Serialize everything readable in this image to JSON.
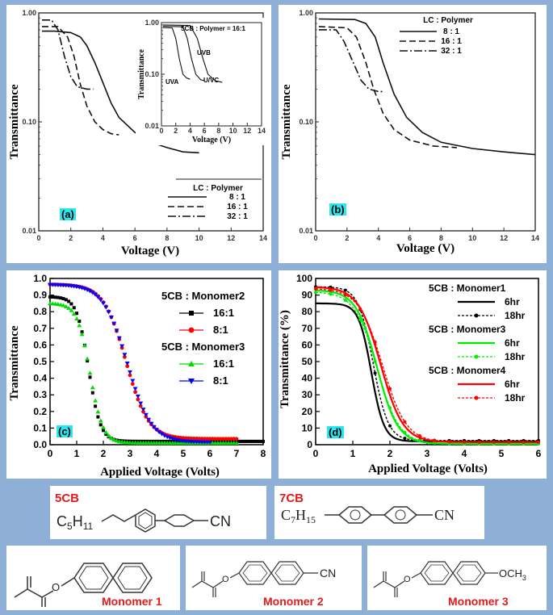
{
  "chart_data": [
    {
      "id": "a",
      "type": "line",
      "panel_label": "(a)",
      "xlabel": "Voltage (V)",
      "ylabel": "Transmittance",
      "xlim": [
        0,
        14
      ],
      "ylim": [
        0.01,
        1.0
      ],
      "yscale": "log",
      "x_ticks": [
        "0",
        "2",
        "4",
        "6",
        "8",
        "10",
        "12",
        "14"
      ],
      "y_ticks": [
        "0.01",
        "0.10",
        "1.00"
      ],
      "legend_title": "LC : Polymer",
      "series": [
        {
          "name": "8 : 1",
          "style": "solid",
          "points": [
            [
              0.2,
              0.68
            ],
            [
              1.0,
              0.68
            ],
            [
              2.0,
              0.66
            ],
            [
              2.6,
              0.6
            ],
            [
              3.0,
              0.5
            ],
            [
              3.5,
              0.35
            ],
            [
              4.0,
              0.23
            ],
            [
              4.5,
              0.15
            ],
            [
              5.0,
              0.11
            ],
            [
              6.0,
              0.08
            ],
            [
              7.0,
              0.065
            ],
            [
              8.0,
              0.058
            ],
            [
              9.0,
              0.053
            ],
            [
              10.0,
              0.052
            ]
          ]
        },
        {
          "name": "16 : 1",
          "style": "dashed",
          "points": [
            [
              0.2,
              0.75
            ],
            [
              1.2,
              0.75
            ],
            [
              1.8,
              0.6
            ],
            [
              2.2,
              0.4
            ],
            [
              2.6,
              0.22
            ],
            [
              3.0,
              0.14
            ],
            [
              3.5,
              0.1
            ],
            [
              4.0,
              0.085
            ],
            [
              4.5,
              0.078
            ],
            [
              5.0,
              0.076
            ]
          ]
        },
        {
          "name": "32 : 1",
          "style": "dashdot",
          "points": [
            [
              0.2,
              0.86
            ],
            [
              0.8,
              0.86
            ],
            [
              1.2,
              0.7
            ],
            [
              1.6,
              0.4
            ],
            [
              2.0,
              0.26
            ],
            [
              2.4,
              0.21
            ],
            [
              3.0,
              0.2
            ],
            [
              3.4,
              0.2
            ]
          ]
        }
      ],
      "inset": {
        "title": "5CB : Polymer = 16:1",
        "xlabel": "Voltage (V)",
        "ylabel": "Transmittance",
        "xlim": [
          0,
          14
        ],
        "ylim": [
          0.01,
          1.0
        ],
        "yscale": "log",
        "x_ticks": [
          "0",
          "2",
          "4",
          "6",
          "8",
          "10",
          "12",
          "14"
        ],
        "y_ticks": [
          "0.01",
          "0.10",
          "1.00"
        ],
        "annotations": [
          "UVB",
          "U/VC",
          "UVA"
        ],
        "series": [
          {
            "name": "UVA",
            "style": "solid",
            "points": [
              [
                0.2,
                0.8
              ],
              [
                1.5,
                0.79
              ],
              [
                2.0,
                0.5
              ],
              [
                2.5,
                0.2
              ],
              [
                3.0,
                0.1
              ],
              [
                3.5,
                0.085
              ],
              [
                4.0,
                0.08
              ]
            ]
          },
          {
            "name": "UVB",
            "style": "solid",
            "points": [
              [
                0.2,
                0.85
              ],
              [
                3.0,
                0.83
              ],
              [
                3.6,
                0.5
              ],
              [
                4.2,
                0.2
              ],
              [
                4.8,
                0.1
              ],
              [
                5.5,
                0.078
              ],
              [
                6.0,
                0.075
              ]
            ]
          },
          {
            "name": "U/VC",
            "style": "solid",
            "points": [
              [
                0.2,
                0.9
              ],
              [
                4.0,
                0.88
              ],
              [
                5.0,
                0.5
              ],
              [
                5.8,
                0.2
              ],
              [
                6.5,
                0.1
              ],
              [
                7.5,
                0.075
              ],
              [
                8.5,
                0.07
              ]
            ]
          }
        ]
      }
    },
    {
      "id": "b",
      "type": "line",
      "panel_label": "(b)",
      "xlabel": "Voltage (V)",
      "ylabel": "Transmittance",
      "xlim": [
        0,
        14
      ],
      "ylim": [
        0.01,
        1.0
      ],
      "yscale": "log",
      "x_ticks": [
        "0",
        "2",
        "4",
        "6",
        "8",
        "10",
        "12",
        "14"
      ],
      "y_ticks": [
        "0.01",
        "0.10",
        "1.00"
      ],
      "legend_title": "LC : Polymer",
      "series": [
        {
          "name": "8 : 1",
          "style": "solid",
          "points": [
            [
              0.2,
              0.88
            ],
            [
              2.5,
              0.87
            ],
            [
              3.2,
              0.8
            ],
            [
              3.8,
              0.6
            ],
            [
              4.3,
              0.35
            ],
            [
              5.0,
              0.18
            ],
            [
              5.8,
              0.11
            ],
            [
              6.8,
              0.08
            ],
            [
              8.0,
              0.065
            ],
            [
              10.0,
              0.057
            ],
            [
              12.0,
              0.053
            ],
            [
              14.0,
              0.05
            ]
          ]
        },
        {
          "name": "16 : 1",
          "style": "dashed",
          "points": [
            [
              0.2,
              0.75
            ],
            [
              2.0,
              0.73
            ],
            [
              2.6,
              0.6
            ],
            [
              3.2,
              0.35
            ],
            [
              3.7,
              0.2
            ],
            [
              4.3,
              0.12
            ],
            [
              5.0,
              0.085
            ],
            [
              6.0,
              0.068
            ],
            [
              7.5,
              0.06
            ],
            [
              9.0,
              0.058
            ]
          ]
        },
        {
          "name": "32 : 1",
          "style": "dashdot",
          "points": [
            [
              0.2,
              0.7
            ],
            [
              1.3,
              0.7
            ],
            [
              1.8,
              0.55
            ],
            [
              2.4,
              0.35
            ],
            [
              2.9,
              0.24
            ],
            [
              3.4,
              0.2
            ],
            [
              4.0,
              0.19
            ],
            [
              4.4,
              0.19
            ]
          ]
        }
      ]
    },
    {
      "id": "c",
      "type": "scatter",
      "panel_label": "(c)",
      "xlabel": "Applied Voltage (Volts)",
      "ylabel": "Transmittance",
      "xlim": [
        0,
        8
      ],
      "ylim": [
        0,
        1.0
      ],
      "x_ticks": [
        "0",
        "1",
        "2",
        "3",
        "4",
        "5",
        "6",
        "7",
        "8"
      ],
      "y_ticks": [
        "0.0",
        "0.1",
        "0.2",
        "0.3",
        "0.4",
        "0.5",
        "0.6",
        "0.7",
        "0.8",
        "0.9",
        "1.0"
      ],
      "legend": [
        {
          "heading": "5CB : Monomer2"
        },
        {
          "name": "16:1",
          "color": "#000000",
          "marker": "square"
        },
        {
          "name": "8:1",
          "color": "#ff0000",
          "marker": "circle"
        },
        {
          "heading": "5CB : Monomer3"
        },
        {
          "name": "16:1",
          "color": "#00dd00",
          "marker": "triangle-up"
        },
        {
          "name": "8:1",
          "color": "#0000ff",
          "marker": "triangle-down"
        }
      ],
      "series": [
        {
          "name": "5CB : Monomer2 16:1",
          "color": "#000000",
          "marker": "square",
          "x0": 0.5,
          "v50": 1.45,
          "vw": 0.22,
          "top": 0.89,
          "bottom": 0.02,
          "xmax": 8.0
        },
        {
          "name": "5CB : Monomer2 8:1",
          "color": "#ff0000",
          "marker": "circle",
          "x0": 3.0,
          "v50": 2.85,
          "vw": 0.42,
          "top": 0.965,
          "bottom": 0.035,
          "xmax": 7.0
        },
        {
          "name": "5CB : Monomer3 16:1",
          "color": "#00dd00",
          "marker": "triangle-up",
          "x0": 0.7,
          "v50": 1.5,
          "vw": 0.24,
          "top": 0.85,
          "bottom": 0.01,
          "xmax": 7.0
        },
        {
          "name": "5CB : Monomer3 8:1",
          "color": "#0000ff",
          "marker": "triangle-down",
          "x0": 2.0,
          "v50": 2.9,
          "vw": 0.45,
          "top": 0.965,
          "bottom": 0.015,
          "xmax": 6.0
        }
      ]
    },
    {
      "id": "d",
      "type": "line",
      "panel_label": "(d)",
      "xlabel": "Applied Voltage (Volts)",
      "ylabel": "Transmittance (%)",
      "xlim": [
        0,
        6
      ],
      "ylim": [
        0,
        100
      ],
      "x_ticks": [
        "0",
        "1",
        "2",
        "3",
        "4",
        "5",
        "6"
      ],
      "y_ticks": [
        "0",
        "10",
        "20",
        "30",
        "40",
        "50",
        "60",
        "70",
        "80",
        "90",
        "100"
      ],
      "legend": [
        {
          "heading": "5CB : Monomer1"
        },
        {
          "name": "6hr",
          "color": "#000000",
          "style": "solid"
        },
        {
          "name": "18hr",
          "color": "#000000",
          "style": "dotted"
        },
        {
          "heading": "5CB : Monomer3"
        },
        {
          "name": "6hr",
          "color": "#00ee00",
          "style": "solid"
        },
        {
          "name": "18hr",
          "color": "#00ee00",
          "style": "dotted"
        },
        {
          "heading": "5CB : Monomer4"
        },
        {
          "name": "6hr",
          "color": "#ff0000",
          "style": "solid"
        },
        {
          "name": "18hr",
          "color": "#ff0000",
          "style": "dotted"
        }
      ],
      "series": [
        {
          "name": "5CB : Monomer1 6hr",
          "color": "#000000",
          "style": "solid",
          "top": 85,
          "v50": 1.5,
          "vw": 0.17,
          "bottom": 2
        },
        {
          "name": "5CB : Monomer1 18hr",
          "color": "#000000",
          "style": "dotted",
          "top": 95,
          "v50": 1.55,
          "vw": 0.2,
          "bottom": 2.5
        },
        {
          "name": "5CB : Monomer3 6hr",
          "color": "#00ee00",
          "style": "solid",
          "top": 93,
          "v50": 1.65,
          "vw": 0.28,
          "bottom": 0.5
        },
        {
          "name": "5CB : Monomer3 18hr",
          "color": "#00ee00",
          "style": "dotted",
          "top": 92,
          "v50": 1.65,
          "vw": 0.3,
          "bottom": 0.5
        },
        {
          "name": "5CB : Monomer4 6hr",
          "color": "#ff0000",
          "style": "solid",
          "top": 95,
          "v50": 1.75,
          "vw": 0.3,
          "bottom": 1.5
        },
        {
          "name": "5CB : Monomer4 18hr",
          "color": "#ff0000",
          "style": "dotted",
          "top": 94,
          "v50": 1.8,
          "vw": 0.32,
          "bottom": 1.5
        }
      ]
    }
  ],
  "structures": {
    "s5cb": {
      "name": "5CB",
      "chain": "C5H11",
      "group": "CN"
    },
    "s7cb": {
      "name": "7CB",
      "chain": "C7H15",
      "group": "CN"
    },
    "m1": {
      "name": "Monomer 1"
    },
    "m2": {
      "name": "Monomer 2",
      "group": "CN"
    },
    "m3": {
      "name": "Monomer 3",
      "group": "OCH3"
    }
  }
}
